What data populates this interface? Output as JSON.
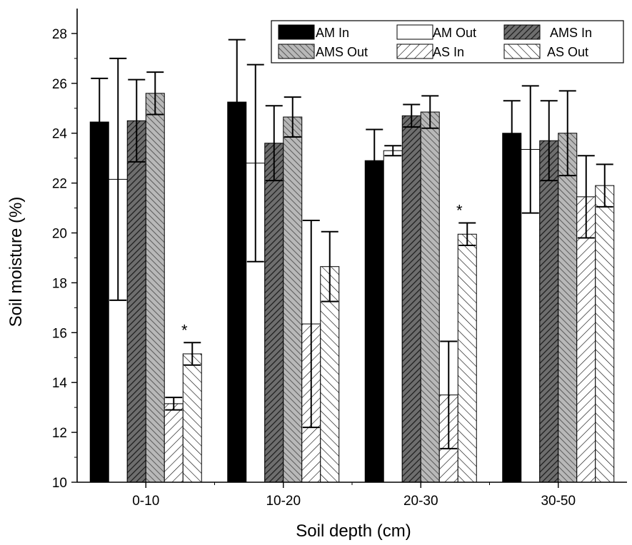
{
  "chart_data": {
    "type": "bar",
    "xlabel": "Soil depth (cm)",
    "ylabel": "Soil moisture (%)",
    "ylim": [
      10,
      29
    ],
    "yticks": [
      10,
      12,
      14,
      16,
      18,
      20,
      22,
      24,
      26,
      28
    ],
    "categories": [
      "0-10",
      "10-20",
      "20-30",
      "30-50"
    ],
    "legend_position": "top-right",
    "series": [
      {
        "name": "AM In",
        "pattern": "solid-black",
        "values": [
          24.45,
          25.25,
          22.9,
          24.0
        ],
        "errors": [
          1.75,
          2.5,
          1.25,
          1.3
        ]
      },
      {
        "name": "AM Out",
        "pattern": "white",
        "values": [
          22.15,
          22.8,
          23.3,
          23.35
        ],
        "errors": [
          4.85,
          3.95,
          0.2,
          2.55
        ]
      },
      {
        "name": "AMS In",
        "pattern": "dense-hatch",
        "values": [
          24.5,
          23.6,
          24.7,
          23.7
        ],
        "errors": [
          1.65,
          1.5,
          0.45,
          1.6
        ]
      },
      {
        "name": "AMS Out",
        "pattern": "gray-hatch",
        "values": [
          25.6,
          24.65,
          24.85,
          24.0
        ],
        "errors": [
          0.85,
          0.8,
          0.65,
          1.7
        ]
      },
      {
        "name": "AS In",
        "pattern": "sparse-hatch",
        "values": [
          13.15,
          16.35,
          13.5,
          21.45
        ],
        "errors": [
          0.25,
          4.15,
          2.15,
          1.65
        ]
      },
      {
        "name": "AS Out",
        "pattern": "back-hatch",
        "values": [
          15.15,
          18.65,
          19.95,
          21.9
        ],
        "errors": [
          0.45,
          1.4,
          0.45,
          0.85
        ]
      }
    ],
    "annotations": [
      {
        "text": "*",
        "category": "0-10",
        "series": "AS Out"
      },
      {
        "text": "*",
        "category": "20-30",
        "series": "AS Out"
      }
    ]
  }
}
